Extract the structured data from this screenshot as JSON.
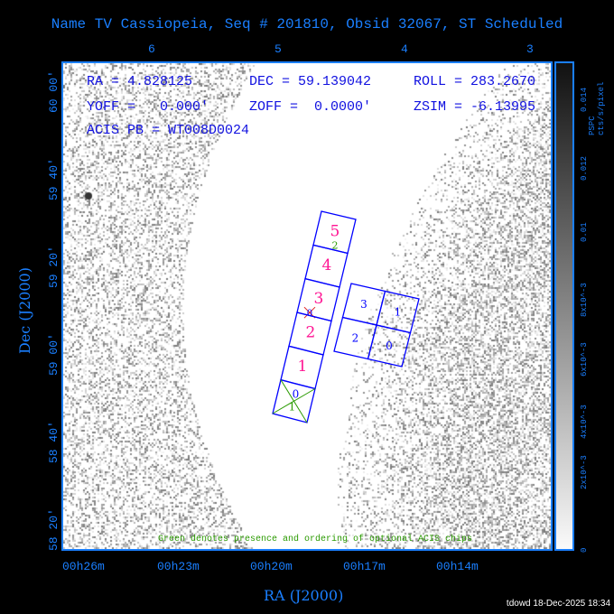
{
  "chart_data": {
    "type": "heatmap",
    "title": "Name TV Cassiopeia, Seq # 201810, Obsid 32067, ST Scheduled",
    "xlabel": "RA (J2000)",
    "ylabel": "Dec (J2000)",
    "x_ticks": [
      "00h26m",
      "00h23m",
      "00h20m",
      "00h17m",
      "00h14m"
    ],
    "y_ticks": [
      "60 00'",
      "59 40'",
      "59 20'",
      "59 00'",
      "58 40'",
      "58 20'"
    ],
    "top_ticks": [
      "6",
      "5",
      "4",
      "3"
    ],
    "colorbar": {
      "label": "PSPC cts/s/pixel",
      "ticks": [
        "0",
        "2x10^-3",
        "4x10^-3",
        "6x10^-3",
        "8x10^-3",
        "0.01",
        "0.012",
        "0.014"
      ],
      "range": [
        0,
        0.015
      ]
    },
    "info": {
      "ra": "RA = 4.828125",
      "dec": "DEC = 59.139042",
      "roll": "ROLL = 283.2670",
      "yoff": "YOFF =   0.000'",
      "zoff": "ZOFF =  0.0000'",
      "zsim": "ZSIM = -6.13995",
      "acis": "ACIS PB = WT008D0024"
    },
    "s_chips": [
      "5",
      "4",
      "3",
      "2",
      "1",
      "0"
    ],
    "i_chips": [
      "3",
      "1",
      "2",
      "0"
    ],
    "optional_marks": {
      "s0_top": "0",
      "s0_bottom": "1",
      "s5": "2",
      "s3": "0"
    },
    "note": "Green denotes presence and ordering of optional ACIS chips"
  },
  "footer": "tdowd 18-Dec-2025 18:34",
  "colors": {
    "axis": "#1a7fff",
    "chip": "#0000ff",
    "chip_label": "#ff1493",
    "optional": "#2a9a00"
  }
}
